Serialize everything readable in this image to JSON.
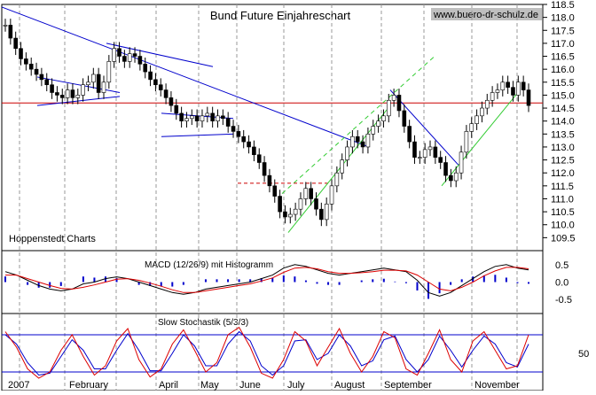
{
  "chart_data": {
    "type": "candlestick",
    "title": "Bund Future Einjahreschart",
    "watermark": "www.buero-dr-schulz.de",
    "source_label": "Hoppenstedt Charts",
    "price_axis": {
      "ylim": [
        109.0,
        118.5
      ],
      "ticks": [
        "109.5",
        "110.0",
        "110.5",
        "111.0",
        "111.5",
        "112.0",
        "112.5",
        "113.0",
        "113.5",
        "114.0",
        "114.5",
        "115.0",
        "115.5",
        "116.0",
        "116.5",
        "117.0",
        "117.5",
        "118.0",
        "118.5"
      ]
    },
    "months": [
      "2007",
      "February",
      "April",
      "May",
      "June",
      "July",
      "August",
      "September",
      "November"
    ],
    "price_series": [
      117.7,
      117.2,
      116.8,
      116.4,
      116.2,
      116.0,
      115.8,
      115.6,
      115.4,
      115.1,
      115.0,
      114.9,
      115.2,
      114.9,
      115.0,
      115.4,
      115.5,
      115.8,
      115.1,
      115.5,
      116.3,
      116.8,
      116.5,
      116.3,
      116.6,
      116.5,
      116.2,
      115.9,
      115.6,
      115.4,
      115.2,
      114.9,
      114.6,
      114.3,
      114.0,
      114.1,
      114.2,
      114.0,
      114.2,
      114.3,
      114.0,
      114.2,
      114.1,
      113.8,
      113.6,
      113.4,
      113.2,
      113.0,
      112.7,
      112.4,
      111.9,
      111.5,
      111.1,
      110.5,
      110.3,
      110.4,
      110.6,
      111.0,
      111.4,
      111.0,
      110.6,
      110.2,
      110.8,
      111.5,
      112.0,
      112.5,
      113.0,
      113.4,
      113.2,
      113.0,
      113.5,
      113.8,
      114.0,
      114.2,
      114.8,
      115.0,
      114.4,
      113.8,
      113.2,
      112.6,
      112.6,
      112.9,
      113.0,
      112.6,
      112.4,
      111.9,
      111.7,
      112.0,
      112.8,
      113.6,
      113.9,
      114.2,
      114.5,
      114.8,
      115.1,
      115.2,
      115.5,
      115.3,
      115.0,
      115.5,
      115.2,
      114.6
    ],
    "indicators": [
      {
        "name": "MACD (12/26/9) mit Histogramm",
        "ticks": [
          "0.5",
          "0.0",
          "-0.5"
        ],
        "ylim": [
          -0.9,
          0.9
        ],
        "macd": [
          0.3,
          0.2,
          0.05,
          -0.1,
          -0.2,
          -0.25,
          -0.2,
          -0.05,
          0.0,
          0.1,
          0.15,
          0.1,
          0.0,
          -0.1,
          -0.2,
          -0.3,
          -0.35,
          -0.3,
          -0.2,
          -0.15,
          -0.1,
          -0.05,
          0.0,
          0.1,
          0.2,
          0.4,
          0.5,
          0.45,
          0.35,
          0.25,
          0.2,
          0.25,
          0.3,
          0.35,
          0.4,
          0.35,
          0.3,
          0.05,
          -0.3,
          -0.4,
          -0.3,
          -0.1,
          0.1,
          0.3,
          0.45,
          0.5,
          0.4,
          0.35
        ],
        "signal": [
          0.2,
          0.2,
          0.1,
          0.0,
          -0.1,
          -0.18,
          -0.2,
          -0.15,
          -0.08,
          0.0,
          0.08,
          0.1,
          0.05,
          -0.03,
          -0.12,
          -0.22,
          -0.3,
          -0.3,
          -0.25,
          -0.2,
          -0.15,
          -0.1,
          -0.05,
          0.03,
          0.12,
          0.28,
          0.4,
          0.42,
          0.38,
          0.3,
          0.25,
          0.25,
          0.27,
          0.3,
          0.34,
          0.34,
          0.32,
          0.2,
          0.0,
          -0.2,
          -0.25,
          -0.15,
          0.0,
          0.18,
          0.32,
          0.42,
          0.42,
          0.38
        ]
      },
      {
        "name": "Slow Stochastik (5/3/3)",
        "ticks": [
          "50"
        ],
        "ylim": [
          0,
          100
        ],
        "k": [
          85,
          60,
          25,
          10,
          20,
          55,
          80,
          45,
          15,
          30,
          70,
          90,
          40,
          12,
          25,
          65,
          88,
          55,
          20,
          35,
          80,
          92,
          60,
          18,
          10,
          40,
          85,
          70,
          30,
          60,
          90,
          50,
          20,
          45,
          85,
          75,
          25,
          15,
          50,
          88,
          40,
          20,
          70,
          85,
          55,
          25,
          30,
          80
        ],
        "d": [
          80,
          65,
          35,
          15,
          18,
          45,
          72,
          55,
          25,
          25,
          55,
          82,
          55,
          22,
          22,
          50,
          80,
          62,
          30,
          30,
          65,
          85,
          70,
          30,
          15,
          30,
          70,
          72,
          40,
          50,
          80,
          62,
          30,
          38,
          72,
          78,
          40,
          20,
          40,
          78,
          55,
          28,
          55,
          78,
          65,
          35,
          28,
          65
        ]
      }
    ],
    "colors": {
      "candle": "#000000",
      "trendline": "#0000cc",
      "support": "#cc0000",
      "channel_dash": "#33cc33",
      "macd_line": "#000000",
      "signal_line": "#dd0000",
      "histogram": "#0000cc",
      "stoch_k": "#dd0000",
      "stoch_d": "#0000cc"
    }
  }
}
